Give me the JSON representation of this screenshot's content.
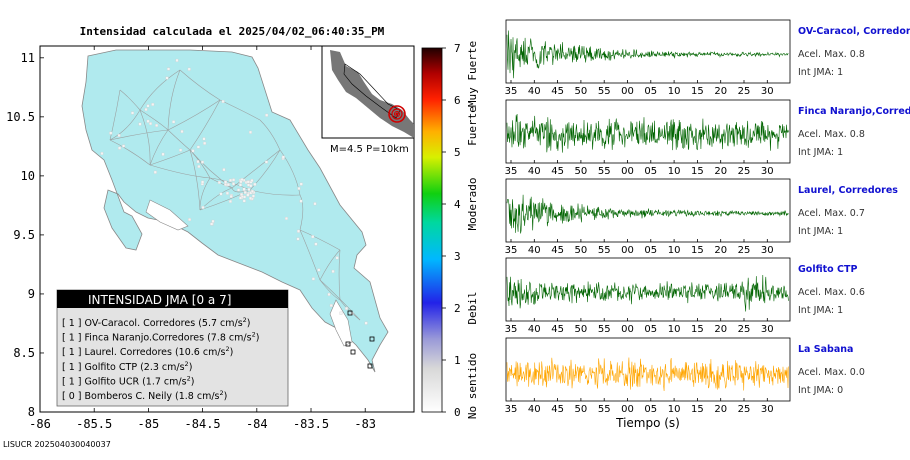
{
  "map": {
    "title": "Intensidad calculada el 2025/04/02_06:40:35_PM",
    "footer": "LISUCR 202504030040037",
    "x_ticks": [
      "-86",
      "-85.5",
      "-85",
      "-84.5",
      "-84",
      "-83.5",
      "-83"
    ],
    "y_ticks": [
      "11",
      "10.5",
      "10",
      "9.5",
      "9",
      "8.5",
      "8"
    ],
    "xlim": [
      -86.0,
      -82.55
    ],
    "ylim": [
      8.0,
      11.1
    ],
    "land_color": "#b0eaee",
    "inset_caption": "M=4.5 P=10km",
    "legend": {
      "title": "INTENSIDAD JMA [0 a 7]",
      "unit": "cm/s",
      "unit_exp": "2",
      "rows": [
        {
          "int": "[ 1 ]",
          "name": "OV-Caracol. Corredores",
          "accel": "5.7"
        },
        {
          "int": "[ 1 ]",
          "name": "Finca Naranjo.Corredores",
          "accel": "7.8"
        },
        {
          "int": "[ 1 ]",
          "name": "Laurel. Corredores",
          "accel": "10.6"
        },
        {
          "int": "[ 1 ]",
          "name": "Golfito CTP",
          "accel": "2.3"
        },
        {
          "int": "[ 1 ]",
          "name": "Golfito UCR",
          "accel": "1.7"
        },
        {
          "int": "[ 0 ]",
          "name": "Bomberos C. Neily",
          "accel": "1.8"
        }
      ]
    }
  },
  "colorbar": {
    "ticks": [
      "7",
      "6",
      "5",
      "4",
      "3",
      "2",
      "1",
      "0"
    ],
    "categories": [
      "Muy Fuerte",
      "Fuerte",
      "Moderado",
      "Debil",
      "No sentido"
    ]
  },
  "waveforms": {
    "x_ticks": [
      "35",
      "40",
      "45",
      "50",
      "55",
      "00",
      "05",
      "10",
      "15",
      "20",
      "25",
      "30"
    ],
    "xlabel": "Tiempo (s)",
    "accel_label": "Acel. Max.",
    "jma_label": "Int JMA:",
    "stations": [
      {
        "name": "OV-Caracol, Corredores",
        "accel": "0.8",
        "jma": "1",
        "color": "#006400"
      },
      {
        "name": "Finca Naranjo,Corredores",
        "accel": "0.8",
        "jma": "1",
        "color": "#006400"
      },
      {
        "name": "Laurel, Corredores",
        "accel": "0.7",
        "jma": "1",
        "color": "#006400"
      },
      {
        "name": "Golfito CTP",
        "accel": "0.6",
        "jma": "1",
        "color": "#006400"
      },
      {
        "name": "La Sabana",
        "accel": "0.0",
        "jma": "0",
        "color": "#ffa500"
      }
    ]
  },
  "chart_data": [
    {
      "type": "heatmap",
      "title": "Intensidad calculada el 2025/04/02_06:40:35_PM",
      "xlabel": "",
      "ylabel": "",
      "xlim": [
        -86.0,
        -82.55
      ],
      "ylim": [
        8.0,
        11.1
      ],
      "colorbar_range": [
        0,
        7
      ],
      "colorbar_labels": [
        "Muy Fuerte",
        "Fuerte",
        "Moderado",
        "Debil",
        "No sentido"
      ]
    },
    {
      "type": "line",
      "xlabel": "Tiempo (s)",
      "series": [
        {
          "name": "OV-Caracol, Corredores",
          "max_accel": 0.8,
          "jma": 1
        },
        {
          "name": "Finca Naranjo,Corredores",
          "max_accel": 0.8,
          "jma": 1
        },
        {
          "name": "Laurel, Corredores",
          "max_accel": 0.7,
          "jma": 1
        },
        {
          "name": "Golfito CTP",
          "max_accel": 0.6,
          "jma": 1
        },
        {
          "name": "La Sabana",
          "max_accel": 0.0,
          "jma": 0
        }
      ]
    }
  ]
}
